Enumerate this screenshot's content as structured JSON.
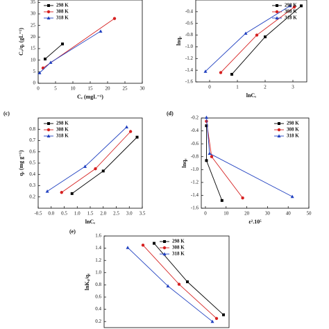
{
  "chart_data": [
    {
      "type": "scatter",
      "xlabel": "Cₑ (mgL⁻¹)",
      "ylabel": "Cₑ/qₑ (gL⁻¹)",
      "legend": "upper left",
      "xlim": [
        0,
        30
      ],
      "ylim": [
        0,
        36
      ],
      "xticks": [
        0,
        5,
        10,
        15,
        20,
        25,
        30
      ],
      "yticks": [
        0,
        5,
        10,
        15,
        20,
        25,
        30,
        35
      ],
      "series": [
        {
          "name": "298 K",
          "color": "#000000",
          "marker": "square",
          "x": [
            2,
            7
          ],
          "values": [
            10.5,
            17
          ]
        },
        {
          "name": "308 K",
          "color": "#d62020",
          "marker": "circle",
          "x": [
            1.4,
            22
          ],
          "values": [
            6.6,
            28
          ]
        },
        {
          "name": "318 K",
          "color": "#2040c0",
          "marker": "triangle",
          "x": [
            0.4,
            3.6,
            18
          ],
          "values": [
            4.5,
            9,
            22.5
          ]
        }
      ]
    },
    {
      "type": "scatter",
      "xlabel": "lnCₑ",
      "ylabel": "lnqₑ",
      "legend": "upper right",
      "xlim": [
        -0.5,
        3.5
      ],
      "ylim": [
        -1.6,
        -0.2
      ],
      "xticks": [
        0,
        1,
        2,
        3
      ],
      "yticks": [
        -1.6,
        -1.4,
        -1.2,
        {
          "value": -1,
          "label": "-1.0"
        },
        -0.8,
        -0.6,
        -0.4
      ],
      "series": [
        {
          "name": "298 K",
          "color": "#000000",
          "marker": "square",
          "x": [
            0.8,
            2,
            3.3
          ],
          "values": [
            -1.47,
            -0.83,
            -0.3
          ]
        },
        {
          "name": "308 K",
          "color": "#d62020",
          "marker": "circle",
          "x": [
            0.4,
            1.7,
            3.05
          ],
          "values": [
            -1.44,
            -0.8,
            -0.32
          ]
        },
        {
          "name": "318 K",
          "color": "#2040c0",
          "marker": "triangle",
          "x": [
            -0.15,
            1.3,
            2.9
          ],
          "values": [
            -1.42,
            -0.77,
            -0.3
          ]
        }
      ]
    },
    {
      "type": "scatter",
      "label": "(c)",
      "xlabel": "lnCₑ",
      "ylabel": "qₑ (mg g⁻¹)",
      "legend": "upper left",
      "xlim": [
        -0.5,
        3.5
      ],
      "ylim": [
        0.1,
        0.9
      ],
      "xticks": [
        -0.5,
        {
          "value": 0,
          "label": "0.0"
        },
        0.5,
        {
          "value": 1,
          "label": "1.0"
        },
        1.5,
        {
          "value": 2,
          "label": "2.0"
        },
        2.5,
        {
          "value": 3,
          "label": "3.0"
        },
        3.5
      ],
      "yticks": [
        0.2,
        0.3,
        0.4,
        0.5,
        0.6,
        0.7,
        0.8
      ],
      "series": [
        {
          "name": "298 K",
          "color": "#000000",
          "marker": "square",
          "x": [
            0.8,
            2,
            3.3
          ],
          "values": [
            0.23,
            0.43,
            0.73
          ]
        },
        {
          "name": "308 K",
          "color": "#d62020",
          "marker": "circle",
          "x": [
            0.4,
            1.7,
            3.05
          ],
          "values": [
            0.24,
            0.45,
            0.78
          ]
        },
        {
          "name": "318 K",
          "color": "#2040c0",
          "marker": "triangle",
          "x": [
            -0.15,
            1.3,
            2.9
          ],
          "values": [
            0.25,
            0.47,
            0.82
          ]
        }
      ]
    },
    {
      "type": "scatter",
      "label": "(d)",
      "xlabel": "ε².10⁵",
      "ylabel": "lnqₑ",
      "legend": "upper right",
      "xlim": [
        -2,
        50
      ],
      "ylim": [
        -1.6,
        -0.2
      ],
      "xticks": [
        0,
        10,
        20,
        30,
        40,
        50
      ],
      "yticks": [
        -1.6,
        -1.4,
        -1.2,
        {
          "value": -1,
          "label": "-1.0"
        },
        -0.8,
        -0.6,
        -0.4,
        -0.2
      ],
      "series": [
        {
          "name": "298 K",
          "color": "#000000",
          "marker": "square",
          "x": [
            0.5,
            0.5,
            8
          ],
          "values": [
            -0.32,
            -0.86,
            -1.48
          ]
        },
        {
          "name": "308 K",
          "color": "#d62020",
          "marker": "circle",
          "x": [
            0.5,
            3,
            18
          ],
          "values": [
            -0.25,
            -0.8,
            -1.44
          ]
        },
        {
          "name": "318 K",
          "color": "#2040c0",
          "marker": "triangle",
          "x": [
            0.5,
            2,
            42
          ],
          "values": [
            -0.19,
            -0.75,
            -1.42
          ]
        }
      ]
    },
    {
      "type": "scatter",
      "label": "(e)",
      "ylabel": "lnK꜀/qₑ",
      "legend": "upper center",
      "xlim": [
        -1,
        3.5
      ],
      "ylim": [
        0.1,
        1.6
      ],
      "yticks": [
        0.2,
        0.4,
        0.6,
        0.8,
        {
          "value": 1,
          "label": "1.0"
        },
        1.2,
        1.4,
        1.6
      ],
      "series": [
        {
          "name": "298 K",
          "color": "#000000",
          "marker": "square",
          "x": [
            0.8,
            2,
            3.3
          ],
          "values": [
            1.48,
            0.85,
            0.31
          ]
        },
        {
          "name": "308 K",
          "color": "#d62020",
          "marker": "circle",
          "x": [
            0.4,
            1.7,
            3.05
          ],
          "values": [
            1.45,
            0.81,
            0.25
          ]
        },
        {
          "name": "318 K",
          "color": "#2040c0",
          "marker": "triangle",
          "x": [
            -0.15,
            1.3,
            2.9
          ],
          "values": [
            1.41,
            0.78,
            0.2
          ]
        }
      ]
    }
  ]
}
